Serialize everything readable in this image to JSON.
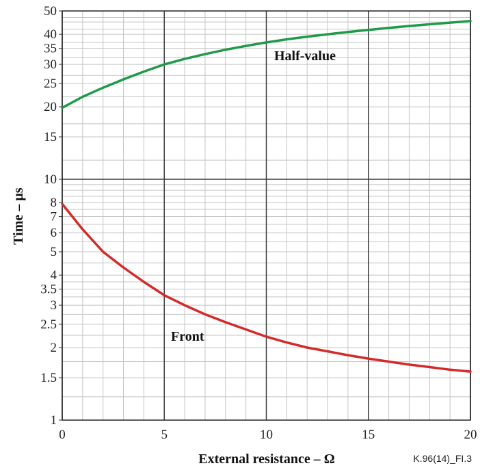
{
  "chart_data": {
    "type": "line",
    "title": "",
    "xlabel": "External resistance – Ω",
    "ylabel": "Time – µs",
    "x_range": [
      0,
      20
    ],
    "y_range": [
      1,
      50
    ],
    "y_scale": "log",
    "grid": true,
    "x_ticks": [
      0,
      5,
      10,
      15,
      20
    ],
    "x_tick_labels": [
      "0",
      "5",
      "10",
      "15",
      "20"
    ],
    "y_ticks": [
      1,
      1.5,
      2,
      2.5,
      3,
      3.5,
      4,
      5,
      6,
      7,
      8,
      10,
      15,
      20,
      25,
      30,
      35,
      40,
      50
    ],
    "y_tick_labels": [
      "1",
      "1.5",
      "2",
      "2.5",
      "3",
      "3.5",
      "4",
      "5",
      "6",
      "7",
      "8",
      "10",
      "15",
      "20",
      "25",
      "30",
      "35",
      "40",
      "50"
    ],
    "x_minor_ticks": [
      1,
      2,
      3,
      4,
      6,
      7,
      8,
      9,
      11,
      12,
      13,
      14,
      16,
      17,
      18,
      19
    ],
    "y_minor_ticks": [
      1.25,
      1.75,
      2.25,
      2.75,
      3.25,
      3.75,
      4.5,
      5.5,
      6.5,
      7.5,
      8.5,
      9,
      9.5,
      12,
      17,
      22,
      27,
      32,
      37,
      42,
      45,
      47
    ],
    "series": [
      {
        "name": "Half-value",
        "color": "#1e9a48",
        "x": [
          0,
          1,
          2,
          3,
          4,
          5,
          6,
          7,
          8,
          9,
          10,
          11,
          12,
          13,
          14,
          15,
          16,
          17,
          18,
          19,
          20
        ],
        "y": [
          19.8,
          22.0,
          24.0,
          26.0,
          28.0,
          30.0,
          31.6,
          33.1,
          34.5,
          35.8,
          37.0,
          38.1,
          39.1,
          40.0,
          40.9,
          41.7,
          42.5,
          43.3,
          44.0,
          44.7,
          45.4
        ]
      },
      {
        "name": "Front",
        "color": "#d42a2a",
        "x": [
          0,
          1,
          2,
          3,
          4,
          5,
          6,
          7,
          8,
          9,
          10,
          11,
          12,
          13,
          14,
          15,
          16,
          17,
          18,
          19,
          20
        ],
        "y": [
          7.9,
          6.2,
          5.0,
          4.3,
          3.75,
          3.3,
          3.0,
          2.75,
          2.55,
          2.38,
          2.22,
          2.1,
          2.0,
          1.93,
          1.86,
          1.8,
          1.75,
          1.7,
          1.66,
          1.62,
          1.59
        ]
      }
    ]
  },
  "figure_id": "K.96(14)_FI.3"
}
